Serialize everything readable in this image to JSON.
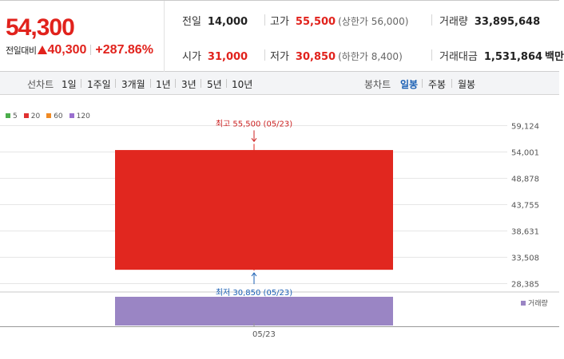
{
  "header": {
    "current_price": "54,300",
    "change_label": "전일대비",
    "change_value": "40,300",
    "change_percent": "+287.86%",
    "stats": {
      "prev_close_label": "전일",
      "prev_close": "14,000",
      "high_label": "고가",
      "high": "55,500",
      "upper_limit": "(상한가 56,000)",
      "volume_label": "거래량",
      "volume": "33,895,648",
      "open_label": "시가",
      "open": "31,000",
      "low_label": "저가",
      "low": "30,850",
      "lower_limit": "(하한가 8,400)",
      "amount_label": "거래대금",
      "amount": "1,531,864",
      "amount_unit": "백만"
    }
  },
  "toolbar": {
    "line_chart_label": "선차트",
    "line_periods": [
      "1일",
      "1주일",
      "3개월",
      "1년",
      "3년",
      "5년",
      "10년"
    ],
    "candle_label": "봉차트",
    "candle_periods": [
      "일봉",
      "주봉",
      "월봉"
    ],
    "active_candle": "일봉"
  },
  "legend": [
    {
      "label": "5",
      "color": "#4cae4c"
    },
    {
      "label": "20",
      "color": "#e03030"
    },
    {
      "label": "60",
      "color": "#f08a24"
    },
    {
      "label": "120",
      "color": "#9a6fcf"
    }
  ],
  "colors": {
    "up": "#e1271f",
    "high_annotation": "#cc2222",
    "low_annotation": "#1a5fb4",
    "volume": "#9a85c4"
  },
  "volume_legend": "거래량",
  "chart_data": {
    "type": "candlestick",
    "dates": [
      "05/23"
    ],
    "open": [
      31000
    ],
    "high": [
      55500
    ],
    "low": [
      30850
    ],
    "close": [
      54300
    ],
    "volume": [
      33895648
    ],
    "y_ticks": [
      "59,124",
      "54,001",
      "48,878",
      "43,755",
      "38,631",
      "33,508",
      "28,385"
    ],
    "y_tick_values": [
      59124,
      54001,
      48878,
      43755,
      38631,
      33508,
      28385
    ],
    "ylim": [
      28385,
      59124
    ],
    "high_annotation": "최고 55,500 (05/23)",
    "low_annotation": "최저 30,850 (05/23)",
    "x_label": "05/23",
    "grid": true
  }
}
